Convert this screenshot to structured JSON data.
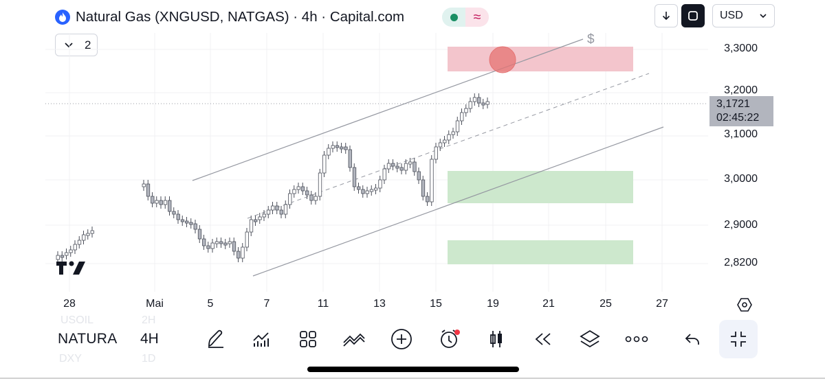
{
  "header": {
    "title": "Natural Gas (XNGUSD, NATGAS) · 4h · Capital.com",
    "status_icons": [
      "market-open-dot-icon",
      "approx-data-icon"
    ],
    "approx_symbol": "≈"
  },
  "top_right": {
    "currency": "USD",
    "icons": [
      "arrow-down-icon",
      "fit-screen-icon",
      "chevron-down-icon"
    ]
  },
  "indicator_toggle": {
    "count": "2"
  },
  "chart": {
    "price_ticks": [
      "3,3000",
      "3,2000",
      "3,1000",
      "3,0000",
      "2,9000",
      "2,8200"
    ],
    "current_price": "3,1721",
    "countdown": "02:45:22",
    "time_ticks": [
      "28",
      "Mai",
      "5",
      "7",
      "11",
      "13",
      "15",
      "19",
      "21",
      "25",
      "27"
    ],
    "alert_icon": "$",
    "colors": {
      "resistance_zone": "#f3c5cc",
      "support_zone": "#cde8cd",
      "alert_circle": "#e57373",
      "candles": "#b2b5be"
    }
  },
  "chart_data": {
    "type": "candlestick",
    "title": "Natural Gas (XNGUSD, NATGAS) · 4h · Capital.com",
    "interval": "4h",
    "ylim": [
      2.79,
      3.37
    ],
    "current_price": 3.1721,
    "resistance_zone": [
      3.25,
      3.31
    ],
    "support_zones": [
      [
        2.95,
        3.02
      ],
      [
        2.81,
        2.865
      ]
    ]
  },
  "toolbar": {
    "symbol": "NATURA",
    "interval": "4H",
    "ghost_symbol_above": "USOIL",
    "ghost_interval_above": "2H",
    "ghost_symbol_below": "DXY",
    "ghost_interval_below": "1D",
    "icons": [
      "drawing-pen-icon",
      "indicators-icon",
      "templates-grid-icon",
      "chart-type-icon",
      "add-icon",
      "alert-clock-icon",
      "candles-icon",
      "replay-icon",
      "layers-icon",
      "more-icon",
      "undo-icon",
      "exit-fullscreen-icon"
    ]
  }
}
